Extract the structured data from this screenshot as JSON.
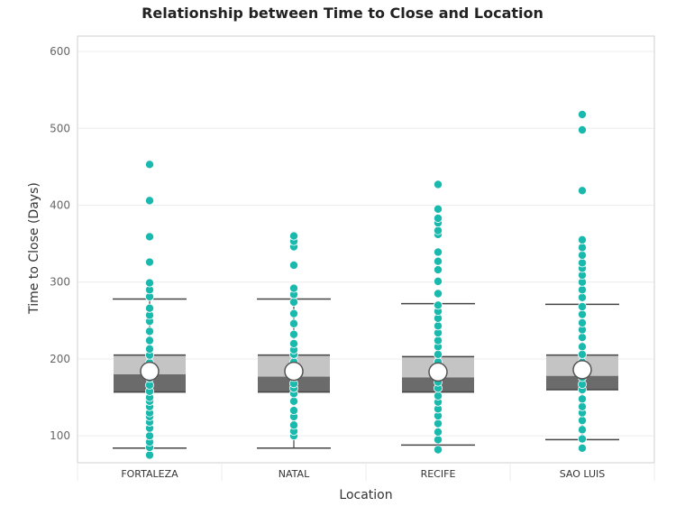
{
  "chart_data": {
    "type": "box",
    "title": "Relationship between Time to Close and Location",
    "xlabel": "Location",
    "ylabel": "Time to Close (Days)",
    "ylim": [
      65,
      620
    ],
    "yticks": [
      100,
      200,
      300,
      400,
      500,
      600
    ],
    "grid": true,
    "categories": [
      "FORTALEZA",
      "NATAL",
      "RECIFE",
      "SAO LUIS"
    ],
    "boxes": [
      {
        "category": "FORTALEZA",
        "whisker_low": 84,
        "q1": 157,
        "median": 180,
        "q3": 205,
        "whisker_high": 278,
        "mean": 184,
        "points": [
          75,
          85,
          92,
          100,
          110,
          118,
          125,
          130,
          138,
          145,
          150,
          158,
          166,
          175,
          185,
          195,
          205,
          213,
          224,
          236,
          249,
          257,
          266,
          281,
          290,
          299,
          326,
          359,
          406,
          453
        ]
      },
      {
        "category": "NATAL",
        "whisker_low": 84,
        "q1": 157,
        "median": 177,
        "q3": 205,
        "whisker_high": 278,
        "mean": 184,
        "points": [
          100,
          106,
          114,
          125,
          133,
          145,
          155,
          162,
          168,
          176,
          186,
          196,
          206,
          212,
          220,
          232,
          246,
          259,
          274,
          284,
          292,
          322,
          346,
          353,
          360
        ]
      },
      {
        "category": "RECIFE",
        "whisker_low": 88,
        "q1": 157,
        "median": 176,
        "q3": 203,
        "whisker_high": 272,
        "mean": 183,
        "points": [
          82,
          95,
          105,
          116,
          126,
          135,
          144,
          152,
          162,
          170,
          178,
          186,
          196,
          206,
          216,
          224,
          234,
          243,
          253,
          262,
          270,
          285,
          301,
          316,
          327,
          339,
          362,
          367,
          377,
          383,
          395,
          427
        ]
      },
      {
        "category": "SAO LUIS",
        "whisker_low": 95,
        "q1": 160,
        "median": 178,
        "q3": 205,
        "whisker_high": 271,
        "mean": 186,
        "points": [
          84,
          96,
          108,
          120,
          130,
          138,
          148,
          160,
          167,
          176,
          186,
          196,
          206,
          216,
          228,
          238,
          247,
          258,
          268,
          280,
          290,
          300,
          309,
          318,
          325,
          335,
          345,
          355,
          419,
          498,
          518
        ]
      }
    ],
    "colors": {
      "points": "#1ab9ad",
      "box_upper": "#c4c4c4",
      "box_lower": "#6b6b6b",
      "whisker": "#444444",
      "mean_marker_fill": "#ffffff",
      "mean_marker_stroke": "#555555",
      "grid": "#ececec",
      "axis_border": "#cfcfcf"
    }
  }
}
